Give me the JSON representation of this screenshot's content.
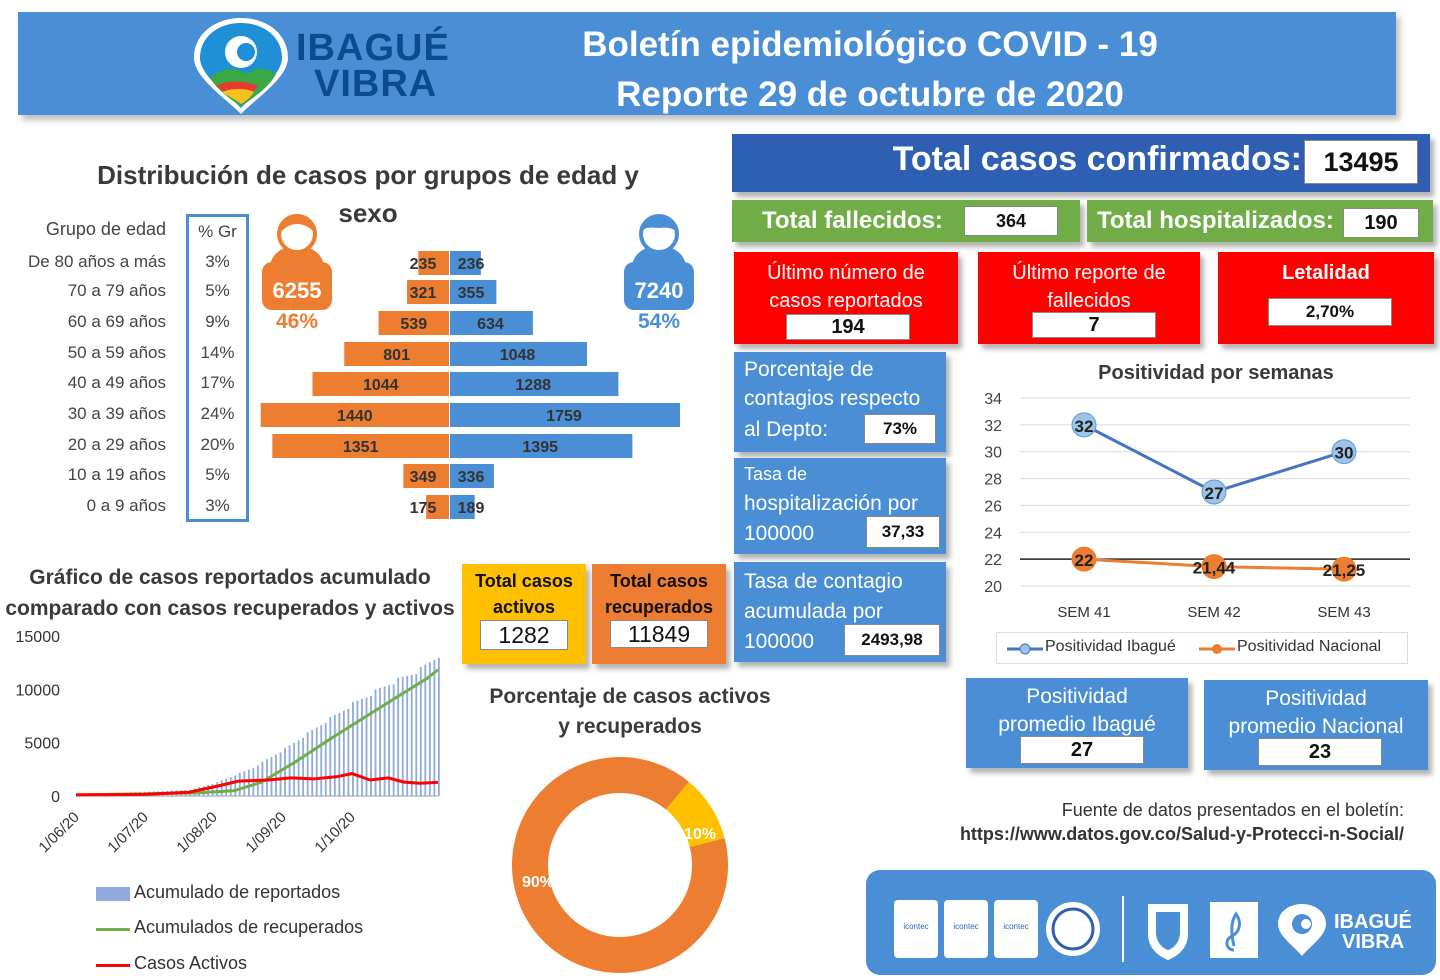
{
  "header": {
    "title_line1": "Boletín epidemiológico COVID  - 19",
    "title_line2": "Reporte 29 de octubre de 2020",
    "logo_text_line1": "IBAGUÉ",
    "logo_text_line2": "VIBRA"
  },
  "colors": {
    "blue": "#4a8fd5",
    "orange": "#ed7d31",
    "green": "#70ad47",
    "red": "#ff0000",
    "yellow": "#ffc000",
    "dark_blue": "#2e5fb3",
    "light_blue": "#8faadc"
  },
  "pyramid": {
    "title_line1": "Distribución de casos por grupos de edad y",
    "title_line2": "sexo",
    "group_header": "Grupo de edad",
    "pct_header": "% Gr",
    "female": {
      "icon": "female-person-icon",
      "total": "6255",
      "pct": "46%"
    },
    "male": {
      "icon": "male-person-icon",
      "total": "7240",
      "pct": "54%"
    }
  },
  "chart_data": [
    {
      "type": "bar",
      "orientation": "horizontal-population-pyramid",
      "title": "Distribución de casos por grupos de edad y sexo",
      "categories": [
        "De 80 años a más",
        "70 a 79 años",
        "60 a 69 años",
        "50 a 59 años",
        "40 a 49 años",
        "30 a 39 años",
        "20 a 29 años",
        "10 a 19 años",
        "0 a 9 años"
      ],
      "group_pct": [
        "3%",
        "5%",
        "9%",
        "14%",
        "17%",
        "24%",
        "20%",
        "5%",
        "3%"
      ],
      "series": [
        {
          "values": [
            235,
            321,
            539,
            801,
            1044,
            1440,
            1351,
            349,
            175
          ],
          "color": "#ed7d31"
        },
        {
          "values": [
            236,
            355,
            634,
            1048,
            1288,
            1759,
            1395,
            336,
            189
          ],
          "color": "#4a8fd5"
        }
      ]
    },
    {
      "type": "line",
      "title": "Positividad por semanas",
      "categories": [
        "SEM 41",
        "SEM 42",
        "SEM 43"
      ],
      "series": [
        {
          "name": "Positividad Ibagué",
          "values": [
            32,
            27,
            30
          ],
          "labels": [
            "32",
            "27",
            "30"
          ],
          "color": "#4472c4"
        },
        {
          "name": "Positividad Nacional",
          "values": [
            22,
            21.44,
            21.25
          ],
          "labels": [
            "22",
            "21,44",
            "21,25"
          ],
          "color": "#ed7d31"
        }
      ],
      "ylim": [
        20,
        34
      ],
      "yticks": [
        "20",
        "22",
        "24",
        "26",
        "28",
        "30",
        "32",
        "34"
      ],
      "grid": true,
      "legend": "bottom"
    },
    {
      "type": "area",
      "title_line1": "Gráfico de casos reportados acumulado",
      "title_line2": "comparado con casos recuperados y activos",
      "x_ticks": [
        "1/06/20",
        "1/07/20",
        "1/08/20",
        "1/09/20",
        "1/10/20"
      ],
      "yticks": [
        "0",
        "5000",
        "10000",
        "15000"
      ],
      "ylim": [
        0,
        15000
      ],
      "series": [
        {
          "name": "Acumulado de reportados",
          "color": "#8faadc",
          "points": [
            [
              0,
              150
            ],
            [
              30,
              400
            ],
            [
              50,
              600
            ],
            [
              62,
              1300
            ],
            [
              77,
              2600
            ],
            [
              92,
              4500
            ],
            [
              107,
              6700
            ],
            [
              122,
              8800
            ],
            [
              137,
              10600
            ],
            [
              152,
              12100
            ],
            [
              160,
              13495
            ]
          ]
        },
        {
          "name": "Acumulados de recuperados",
          "color": "#70ad47",
          "points": [
            [
              0,
              100
            ],
            [
              30,
              200
            ],
            [
              55,
              300
            ],
            [
              70,
              500
            ],
            [
              82,
              1300
            ],
            [
              97,
              3200
            ],
            [
              112,
              5300
            ],
            [
              127,
              7300
            ],
            [
              142,
              9300
            ],
            [
              155,
              11000
            ],
            [
              160,
              11849
            ]
          ]
        },
        {
          "name": "Casos Activos",
          "color": "#ff0000",
          "points": [
            [
              0,
              100
            ],
            [
              30,
              150
            ],
            [
              50,
              350
            ],
            [
              62,
              900
            ],
            [
              72,
              1400
            ],
            [
              85,
              1500
            ],
            [
              95,
              1700
            ],
            [
              105,
              1600
            ],
            [
              115,
              1800
            ],
            [
              122,
              2100
            ],
            [
              130,
              1500
            ],
            [
              138,
              1700
            ],
            [
              145,
              1300
            ],
            [
              152,
              1200
            ],
            [
              160,
              1282
            ]
          ]
        }
      ],
      "legend": "bottom"
    },
    {
      "type": "pie",
      "style": "donut",
      "title_line1": "Porcentaje de casos activos",
      "title_line2": "y recuperados",
      "slices": [
        {
          "value": 10,
          "label": "10%",
          "color": "#ffc000"
        },
        {
          "value": 90,
          "label": "90%",
          "color": "#ed7d31"
        }
      ]
    }
  ],
  "stats": {
    "total_confirmed_label": "Total casos confirmados:",
    "total_confirmed": "13495",
    "total_deaths_label": "Total fallecidos:",
    "total_deaths": "364",
    "total_hosp_label": "Total hospitalizados:",
    "total_hosp": "190",
    "last_cases_label1": "Último número de",
    "last_cases_label2": "casos reportados",
    "last_cases": "194",
    "last_deaths_label1": "Último reporte de",
    "last_deaths_label2": "fallecidos",
    "last_deaths": "7",
    "lethality_label": "Letalidad",
    "lethality": "2,70%",
    "pct_contagion_label1": "Porcentaje de",
    "pct_contagion_label2": "contagios respecto",
    "pct_contagion_label3": "al Depto:",
    "pct_contagion": "73%",
    "hosp_rate_label1": "Tasa de",
    "hosp_rate_label2": "hospitalización por",
    "hosp_rate_label3": "100000",
    "hosp_rate": "37,33",
    "contag_rate_label1": "Tasa de contagio",
    "contag_rate_label2": "acumulada por",
    "contag_rate_label3": "100000",
    "contag_rate": "2493,98",
    "active_label1": "Total casos",
    "active_label2": "activos",
    "active": "1282",
    "recovered_label1": "Total casos",
    "recovered_label2": "recuperados",
    "recovered": "11849",
    "pos_ibague_label1": "Positividad",
    "pos_ibague_label2": "promedio Ibagué",
    "pos_ibague": "27",
    "pos_nacional_label1": "Positividad",
    "pos_nacional_label2": "promedio Nacional",
    "pos_nacional": "23"
  },
  "source": {
    "line1": "Fuente de datos presentados en el boletín:",
    "line2": "https://www.datos.gov.co/Salud-y-Protecci-n-Social/"
  },
  "footer": {
    "cert_text": "icontec",
    "logo_text_line1": "IBAGUÉ",
    "logo_text_line2": "VIBRA"
  }
}
